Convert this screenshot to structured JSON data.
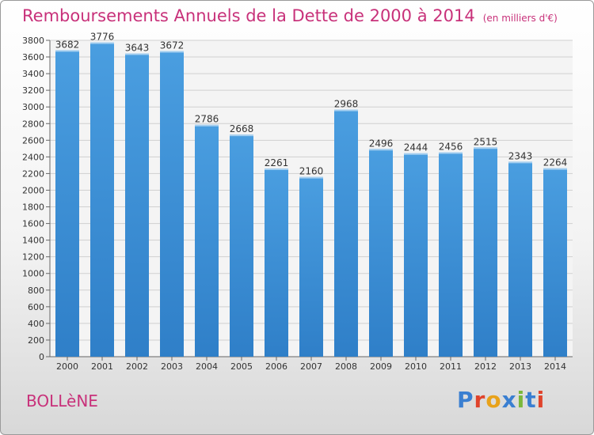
{
  "header": {
    "title": "Remboursements Annuels de la Dette de 2000 à 2014",
    "unit": "(en milliers d'€)"
  },
  "footer": {
    "city": "BOLLèNE",
    "logo": {
      "text": "Proxiti",
      "letters": [
        "P",
        "r",
        "o",
        "x",
        "i",
        "t",
        "i"
      ],
      "colors": [
        "#3a7fd1",
        "#e0432b",
        "#e8a21a",
        "#3a7fd1",
        "#7ab83b",
        "#3a7fd1",
        "#e0432b"
      ]
    }
  },
  "colors": {
    "bar": "#4a9ee0",
    "bar_dark": "#2f7fc8",
    "title": "#c8317a"
  },
  "chart_data": {
    "type": "bar",
    "categories": [
      "2000",
      "2001",
      "2002",
      "2003",
      "2004",
      "2005",
      "2006",
      "2007",
      "2008",
      "2009",
      "2010",
      "2011",
      "2012",
      "2013",
      "2014"
    ],
    "values": [
      3682,
      3776,
      3643,
      3672,
      2786,
      2668,
      2261,
      2160,
      2968,
      2496,
      2444,
      2456,
      2515,
      2343,
      2264
    ],
    "title": "Remboursements Annuels de la Dette de 2000 à 2014",
    "xlabel": "",
    "ylabel": "",
    "ylim": [
      0,
      3800
    ],
    "yticks": [
      0,
      200,
      400,
      600,
      800,
      1000,
      1200,
      1400,
      1600,
      1800,
      2000,
      2200,
      2400,
      2600,
      2800,
      3000,
      3200,
      3400,
      3600,
      3800
    ],
    "grid": true,
    "legend": "none"
  }
}
